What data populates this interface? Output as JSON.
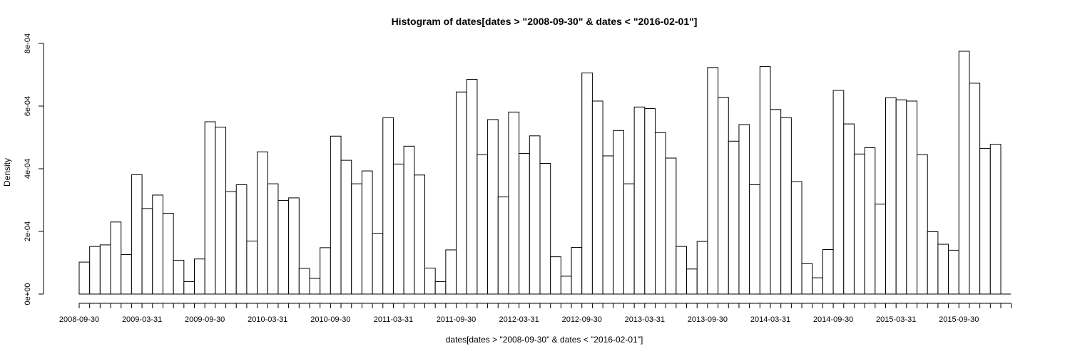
{
  "chart_data": {
    "type": "bar",
    "title": "Histogram of dates[dates > \"2008-09-30\" & dates < \"2016-02-01\"]",
    "xlabel": "dates[dates > \"2008-09-30\" & dates < \"2016-02-01\"]",
    "ylabel": "Density",
    "ylim": [
      0,
      0.0008
    ],
    "y_ticks": [
      {
        "value": 0,
        "label": "0e+00"
      },
      {
        "value": 0.0002,
        "label": "2e-04"
      },
      {
        "value": 0.0004,
        "label": "4e-04"
      },
      {
        "value": 0.0006,
        "label": "6e-04"
      },
      {
        "value": 0.0008,
        "label": "8e-04"
      }
    ],
    "x_tick_labels": [
      "2008-09-30",
      "2009-03-31",
      "2009-09-30",
      "2010-03-31",
      "2010-09-30",
      "2011-03-31",
      "2011-09-30",
      "2012-03-31",
      "2012-09-30",
      "2013-03-31",
      "2013-09-30",
      "2014-03-31",
      "2014-09-30",
      "2015-03-31",
      "2015-09-30"
    ],
    "bin_width": "1 month",
    "values": [
      0.000102,
      0.000152,
      0.000157,
      0.00023,
      0.000126,
      0.000381,
      0.000273,
      0.000316,
      0.000258,
      0.000108,
      4e-05,
      0.000112,
      0.00055,
      0.000533,
      0.000327,
      0.000349,
      0.000169,
      0.000454,
      0.000352,
      0.000299,
      0.000307,
      8.2e-05,
      5e-05,
      0.000148,
      0.000504,
      0.000427,
      0.000352,
      0.000393,
      0.000194,
      0.000563,
      0.000415,
      0.000472,
      0.00038,
      8.3e-05,
      4e-05,
      0.000141,
      0.000645,
      0.000685,
      0.000445,
      0.000557,
      0.00031,
      0.000581,
      0.000449,
      0.000505,
      0.000417,
      0.000119,
      5.7e-05,
      0.000149,
      0.000706,
      0.000616,
      0.000441,
      0.000522,
      0.000352,
      0.000597,
      0.000592,
      0.000515,
      0.000434,
      0.000152,
      8e-05,
      0.000168,
      0.000723,
      0.000628,
      0.000488,
      0.000541,
      0.000349,
      0.000726,
      0.000589,
      0.000563,
      0.000359,
      9.7e-05,
      5.2e-05,
      0.000142,
      0.00065,
      0.000543,
      0.000447,
      0.000467,
      0.000287,
      0.000627,
      0.00062,
      0.000616,
      0.000445,
      0.000199,
      0.000159,
      0.00014,
      0.000775,
      0.000673,
      0.000465,
      0.000478
    ],
    "grid": false,
    "legend": "none"
  }
}
